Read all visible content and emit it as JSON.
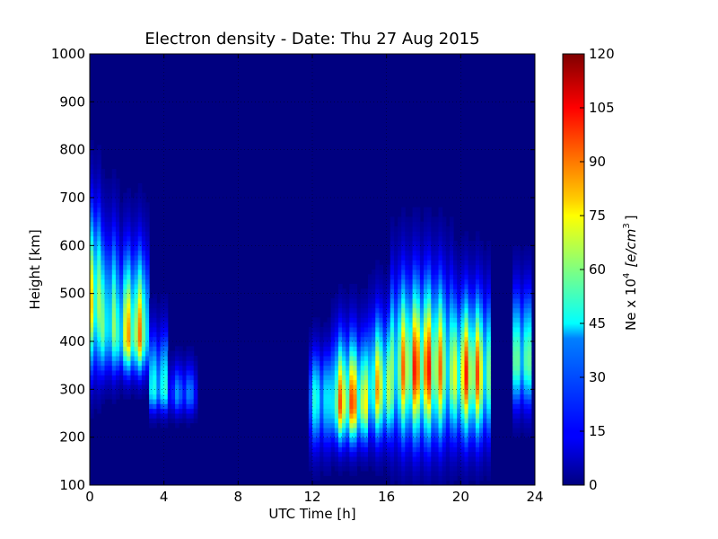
{
  "chart_data": {
    "type": "heatmap",
    "title": "Electron density - Date: Thu 27 Aug 2015",
    "xlabel": "UTC Time [h]",
    "ylabel": "Height [km]",
    "xlim": [
      0,
      24
    ],
    "ylim": [
      100,
      1000
    ],
    "x_ticks": [
      0,
      4,
      8,
      12,
      16,
      20,
      24
    ],
    "y_ticks": [
      100,
      200,
      300,
      400,
      500,
      600,
      700,
      800,
      900,
      1000
    ],
    "grid": true,
    "colormap": "jet",
    "colorbar": {
      "label_main": "Ne x 10",
      "label_exp": "4",
      "label_unit": "[e/cm",
      "label_unit_exp": "3",
      "label_close": "]",
      "range": [
        0,
        120
      ],
      "ticks": [
        0,
        15,
        30,
        45,
        60,
        75,
        90,
        105,
        120
      ]
    },
    "data_description": "Electron density (Ne x 10^4 e/cm^3) vs UTC time and height",
    "regions": [
      {
        "t_start": 0.0,
        "t_end": 0.6,
        "peak_height": 480,
        "peak_value": 95,
        "bottom": 280,
        "top": 800
      },
      {
        "t_start": 0.6,
        "t_end": 1.5,
        "peak_height": 430,
        "peak_value": 70,
        "bottom": 290,
        "top": 750
      },
      {
        "t_start": 1.5,
        "t_end": 3.3,
        "peak_height": 410,
        "peak_value": 95,
        "bottom": 300,
        "top": 700
      },
      {
        "t_start": 3.3,
        "t_end": 4.2,
        "peak_height": 300,
        "peak_value": 60,
        "bottom": 230,
        "top": 500
      },
      {
        "t_start": 4.2,
        "t_end": 5.8,
        "peak_height": 290,
        "peak_value": 35,
        "bottom": 260,
        "top": 400
      },
      {
        "t_start": 11.8,
        "t_end": 13.0,
        "peak_height": 280,
        "peak_value": 55,
        "bottom": 130,
        "top": 450
      },
      {
        "t_start": 13.0,
        "t_end": 15.0,
        "peak_height": 270,
        "peak_value": 105,
        "bottom": 150,
        "top": 500
      },
      {
        "t_start": 15.0,
        "t_end": 16.3,
        "peak_height": 300,
        "peak_value": 90,
        "bottom": 150,
        "top": 550
      },
      {
        "t_start": 16.3,
        "t_end": 19.5,
        "peak_height": 340,
        "peak_value": 110,
        "bottom": 130,
        "top": 650
      },
      {
        "t_start": 19.5,
        "t_end": 21.5,
        "peak_height": 330,
        "peak_value": 105,
        "bottom": 140,
        "top": 600
      },
      {
        "t_start": 22.8,
        "t_end": 23.8,
        "peak_height": 360,
        "peak_value": 70,
        "bottom": 220,
        "top": 600
      }
    ]
  }
}
